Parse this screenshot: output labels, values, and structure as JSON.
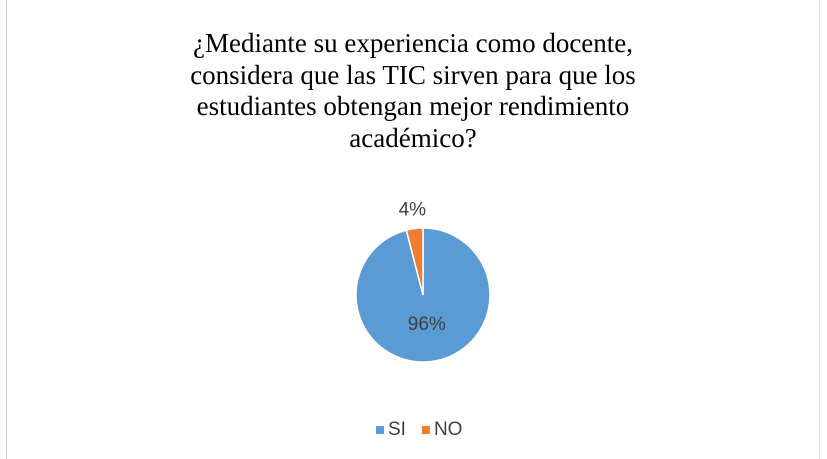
{
  "chart_data": {
    "type": "pie",
    "title": "¿Mediante su experiencia como docente, considera que las TIC sirven para que los estudiantes obtengan mejor rendimiento académico?",
    "categories": [
      "SI",
      "NO"
    ],
    "values": [
      96,
      4
    ],
    "value_labels": [
      "96%",
      "4%"
    ],
    "colors": [
      "#5b9bd5",
      "#ed7d31"
    ],
    "legend": "bottom"
  }
}
